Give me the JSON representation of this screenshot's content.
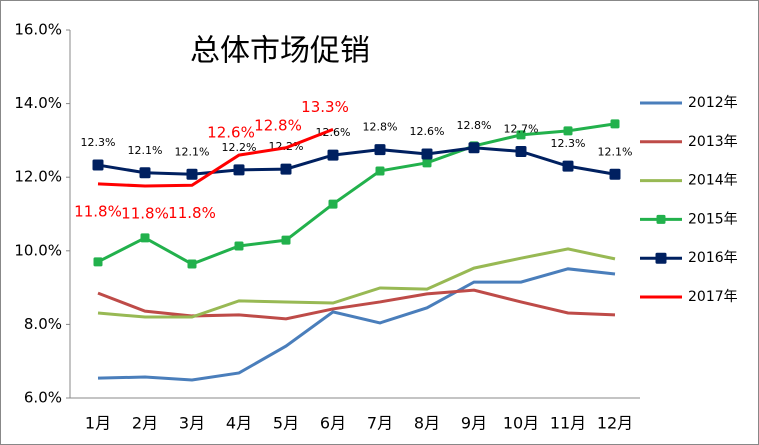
{
  "chart_data": {
    "type": "line",
    "title": "总体市场促销",
    "categories": [
      "1月",
      "2月",
      "3月",
      "4月",
      "5月",
      "6月",
      "7月",
      "8月",
      "9月",
      "10月",
      "11月",
      "12月"
    ],
    "ylim": [
      6,
      16
    ],
    "yticks": [
      {
        "value": 6,
        "label": "6.0%"
      },
      {
        "value": 8,
        "label": "8.0%"
      },
      {
        "value": 10,
        "label": "10.0%"
      },
      {
        "value": 12,
        "label": "12.0%"
      },
      {
        "value": 14,
        "label": "14.0%"
      },
      {
        "value": 16,
        "label": "16.0%"
      }
    ],
    "grid": false,
    "legend": "right",
    "series": [
      {
        "name": "2012年",
        "color": "#4a7ebb",
        "marker": "none",
        "values": [
          6.54,
          6.57,
          6.49,
          6.68,
          7.41,
          8.34,
          8.04,
          8.45,
          9.15,
          9.15,
          9.51,
          9.37
        ]
      },
      {
        "name": "2013年",
        "color": "#be4b48",
        "marker": "none",
        "values": [
          8.85,
          8.36,
          8.23,
          8.26,
          8.15,
          8.42,
          8.61,
          8.83,
          8.93,
          8.61,
          8.31,
          8.26
        ]
      },
      {
        "name": "2014年",
        "color": "#98b954",
        "marker": "none",
        "values": [
          8.31,
          8.2,
          8.2,
          8.64,
          8.61,
          8.58,
          8.99,
          8.96,
          9.53,
          9.8,
          10.05,
          9.78
        ]
      },
      {
        "name": "2015年",
        "color": "#22b14c",
        "marker": "square",
        "values": [
          9.7,
          10.35,
          9.64,
          10.13,
          10.29,
          11.27,
          12.17,
          12.39,
          12.85,
          13.15,
          13.26,
          13.45
        ]
      },
      {
        "name": "2016年",
        "color": "#002060",
        "marker": "square",
        "values": [
          12.33,
          12.12,
          12.08,
          12.2,
          12.22,
          12.6,
          12.75,
          12.63,
          12.8,
          12.7,
          12.3,
          12.08
        ],
        "value_labels": [
          "12.3%",
          "12.1%",
          "12.1%",
          "12.2%",
          "12.2%",
          "12.6%",
          "12.8%",
          "12.6%",
          "12.8%",
          "12.7%",
          "12.3%",
          "12.1%"
        ]
      },
      {
        "name": "2017年",
        "color": "#ff0000",
        "marker": "none",
        "values": [
          11.82,
          11.76,
          11.78,
          12.6,
          12.8,
          13.3,
          null,
          null,
          null,
          null,
          null,
          null
        ],
        "value_labels": [
          "11.8%",
          "11.8%",
          "11.8%",
          "12.6%",
          "12.8%",
          "13.3%",
          null,
          null,
          null,
          null,
          null,
          null
        ]
      }
    ]
  }
}
